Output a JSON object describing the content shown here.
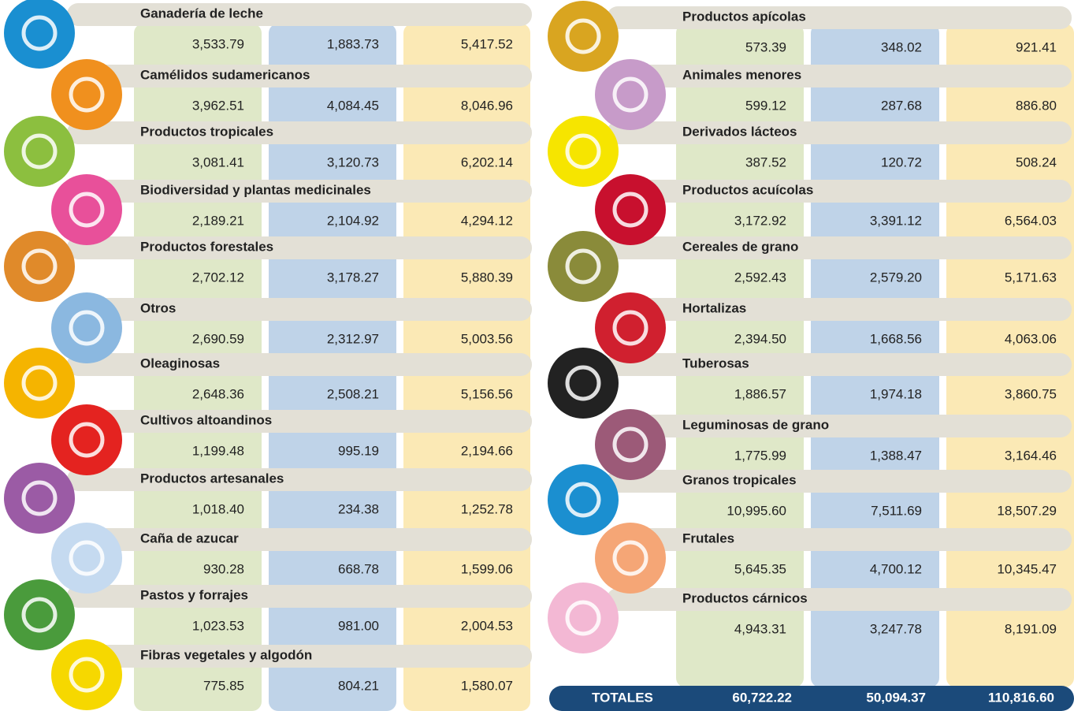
{
  "left": {
    "rows": [
      {
        "name": "Ganadería de leche",
        "values": [
          "3,533.79",
          "1,883.73",
          "5,417.52"
        ]
      },
      {
        "name": "Camélidos sudamericanos",
        "values": [
          "3,962.51",
          "4,084.45",
          "8,046.96"
        ]
      },
      {
        "name": "Productos tropicales",
        "values": [
          "3,081.41",
          "3,120.73",
          "6,202.14"
        ]
      },
      {
        "name": "Biodiversidad y plantas medicinales",
        "values": [
          "2,189.21",
          "2,104.92",
          "4,294.12"
        ]
      },
      {
        "name": "Productos forestales",
        "values": [
          "2,702.12",
          "3,178.27",
          "5,880.39"
        ]
      },
      {
        "name": "Otros",
        "values": [
          "2,690.59",
          "2,312.97",
          "5,003.56"
        ]
      },
      {
        "name": "Oleaginosas",
        "values": [
          "2,648.36",
          "2,508.21",
          "5,156.56"
        ]
      },
      {
        "name": "Cultivos altoandinos",
        "values": [
          "1,199.48",
          "995.19",
          "2,194.66"
        ]
      },
      {
        "name": "Productos artesanales",
        "values": [
          "1,018.40",
          "234.38",
          "1,252.78"
        ]
      },
      {
        "name": "Caña de azucar",
        "values": [
          "930.28",
          "668.78",
          "1,599.06"
        ]
      },
      {
        "name": "Pastos y forrajes",
        "values": [
          "1,023.53",
          "981.00",
          "2,004.53"
        ]
      },
      {
        "name": "Fibras vegetales y algodón",
        "values": [
          "775.85",
          "804.21",
          "1,580.07"
        ]
      }
    ]
  },
  "right": {
    "rows": [
      {
        "name": "Productos apícolas",
        "values": [
          "573.39",
          "348.02",
          "921.41"
        ]
      },
      {
        "name": "Animales menores",
        "values": [
          "599.12",
          "287.68",
          "886.80"
        ]
      },
      {
        "name": "Derivados lácteos",
        "values": [
          "387.52",
          "120.72",
          "508.24"
        ]
      },
      {
        "name": "Productos acuícolas",
        "values": [
          "3,172.92",
          "3,391.12",
          "6,564.03"
        ]
      },
      {
        "name": "Cereales de grano",
        "values": [
          "2,592.43",
          "2,579.20",
          "5,171.63"
        ]
      },
      {
        "name": "Hortalizas",
        "values": [
          "2,394.50",
          "1,668.56",
          "4,063.06"
        ]
      },
      {
        "name": "Tuberosas",
        "values": [
          "1,886.57",
          "1,974.18",
          "3,860.75"
        ]
      },
      {
        "name": "Leguminosas de grano",
        "values": [
          "1,775.99",
          "1,388.47",
          "3,164.46"
        ]
      },
      {
        "name": "Granos tropicales",
        "values": [
          "10,995.60",
          "7,511.69",
          "18,507.29"
        ]
      },
      {
        "name": "Frutales",
        "values": [
          "5,645.35",
          "4,700.12",
          "10,345.47"
        ]
      },
      {
        "name": "Productos cárnicos",
        "values": [
          "4,943.31",
          "3,247.78",
          "8,191.09"
        ]
      }
    ]
  },
  "totals": {
    "label": "TOTALES",
    "values": [
      "60,722.22",
      "50,094.37",
      "110,816.60"
    ]
  }
}
